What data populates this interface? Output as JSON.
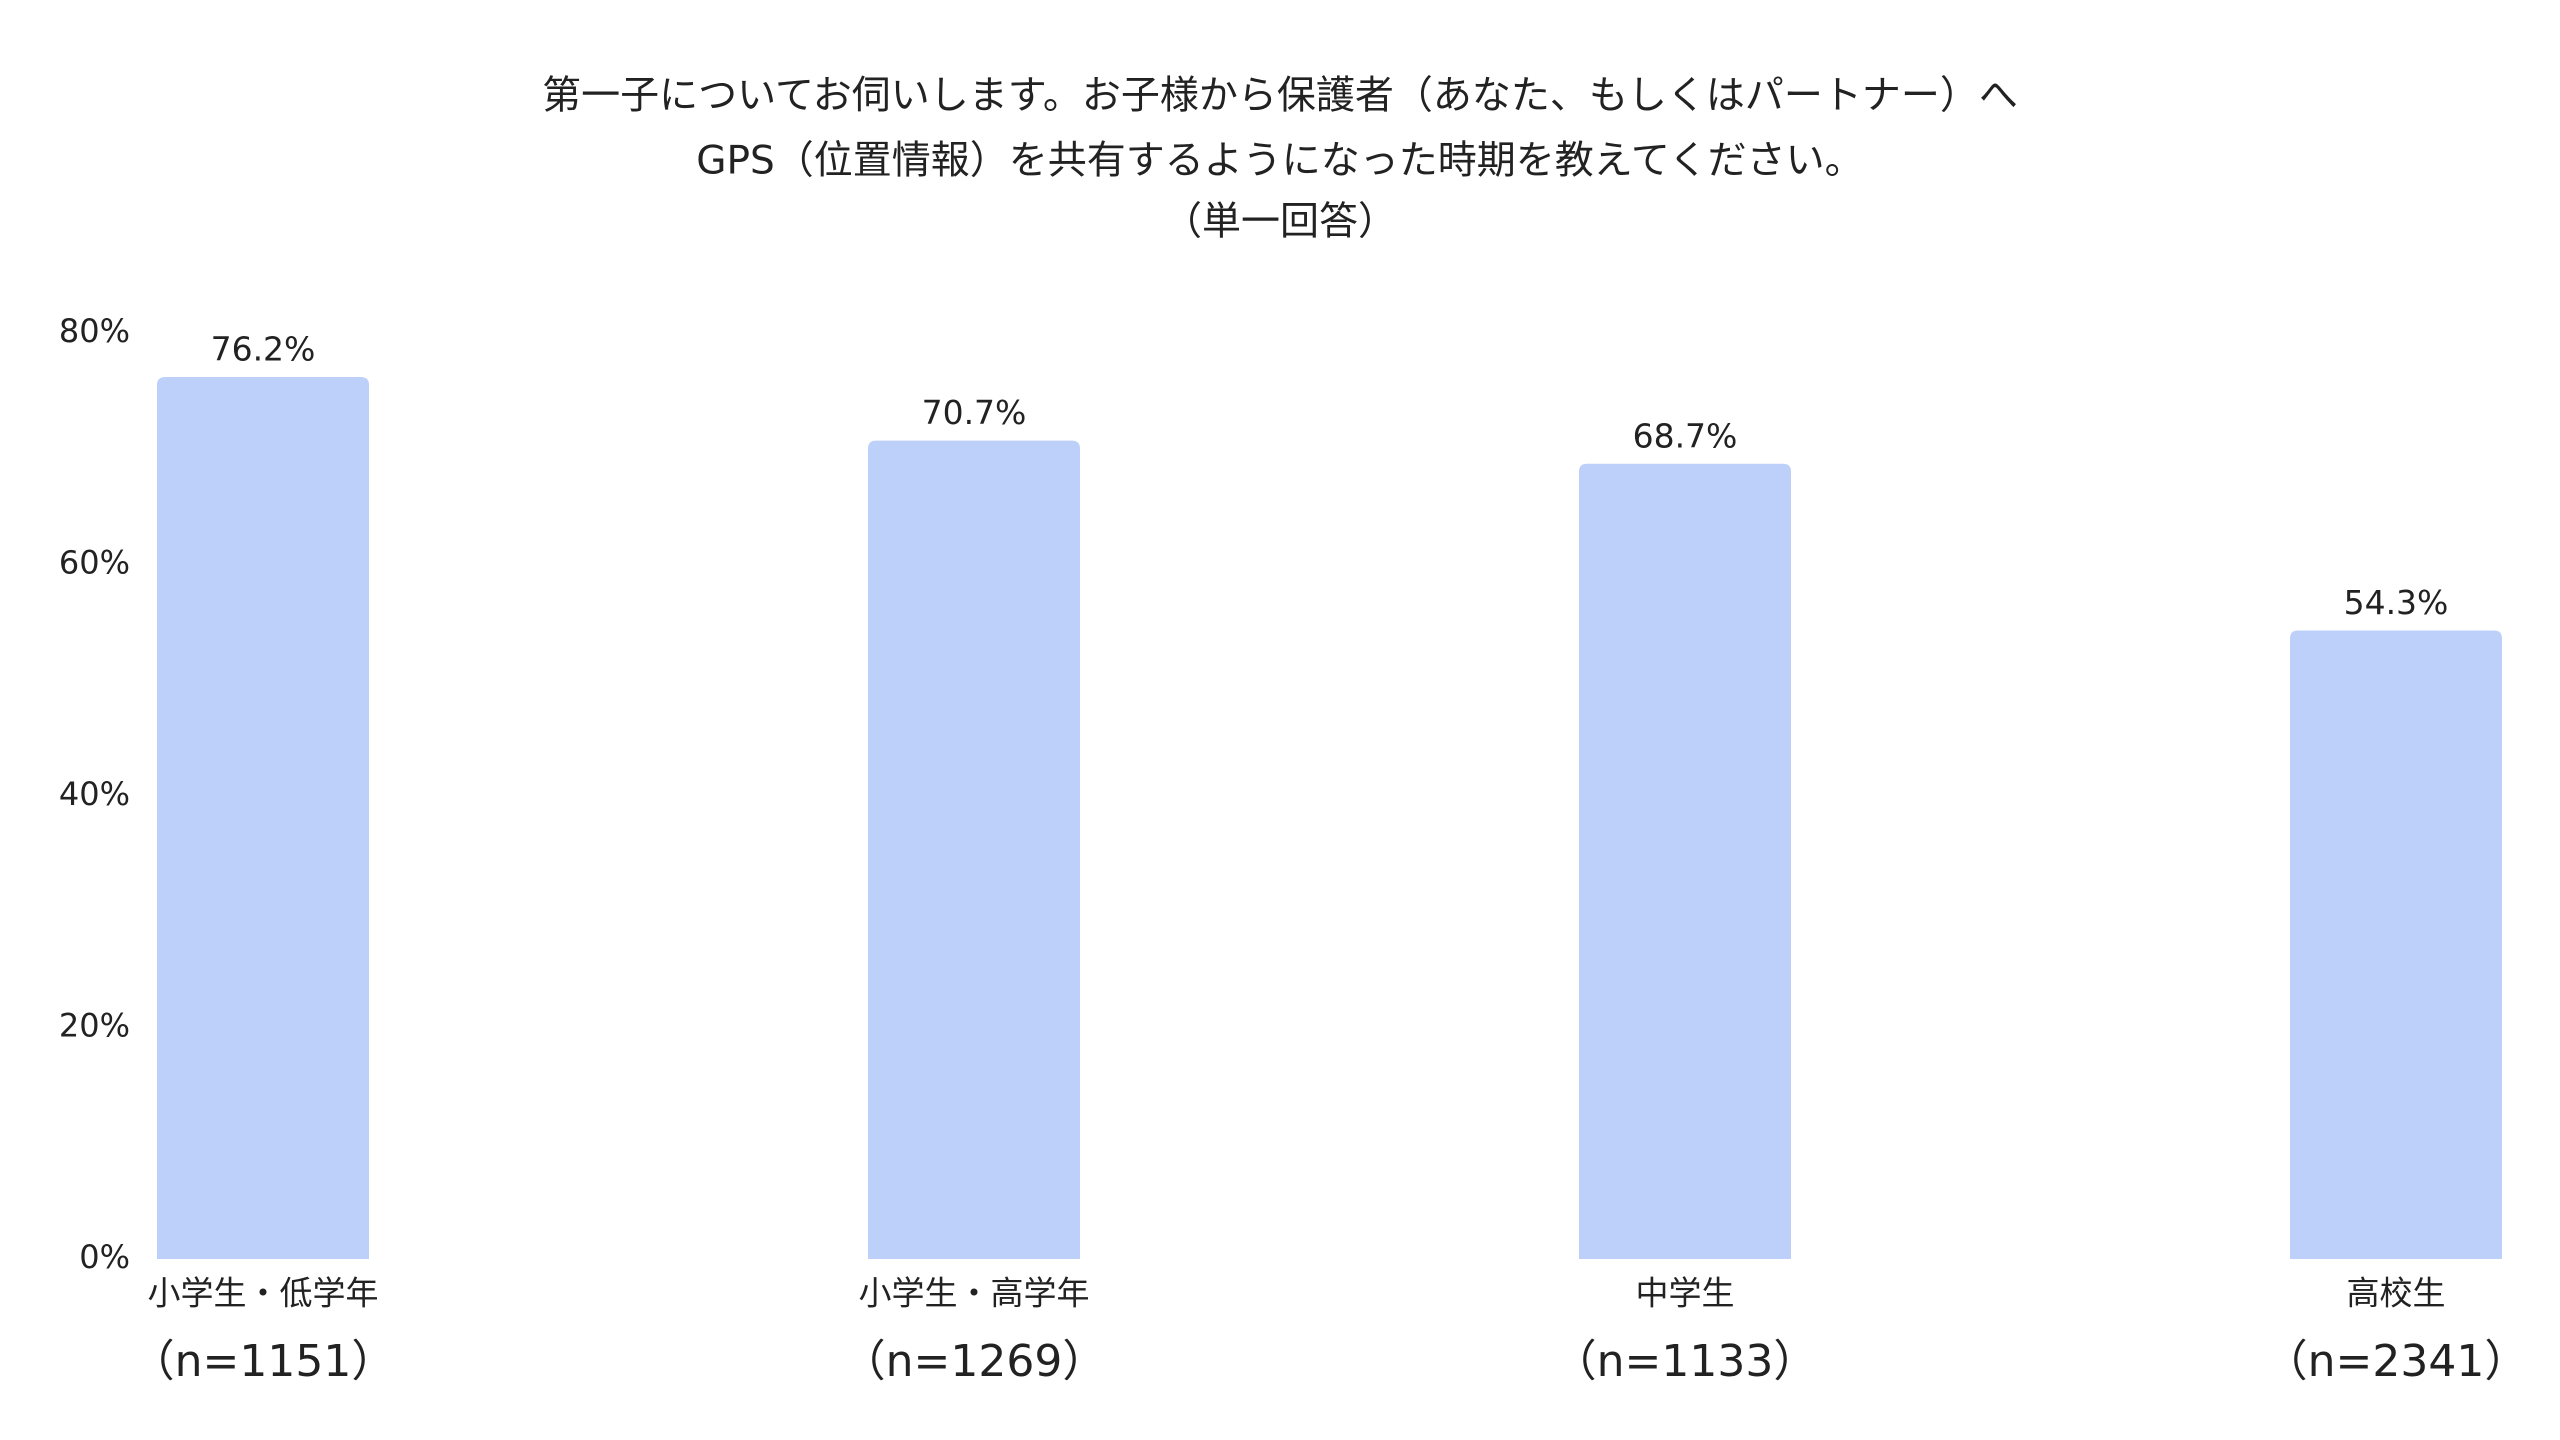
{
  "chart_data": {
    "type": "bar",
    "title": [
      "第一子についてお伺いします。お子様から保護者（あなた、もしくはパートナー）へ",
      "GPS（位置情報）を共有するようになった時期を教えてください。",
      "（単一回答）"
    ],
    "categories": [
      "小学生・低学年",
      "小学生・高学年",
      "中学生",
      "高校生"
    ],
    "sample_sizes": [
      "（n=1151）",
      "（n=1269）",
      "（n=1133）",
      "（n=2341）"
    ],
    "values": [
      76.2,
      70.7,
      68.7,
      54.3
    ],
    "value_labels": [
      "76.2%",
      "70.7%",
      "68.7%",
      "54.3%"
    ],
    "color": "#bdd0fa",
    "ylim": [
      0,
      80
    ],
    "yticks": [
      {
        "value": 0,
        "label": "0%"
      },
      {
        "value": 20,
        "label": "20%"
      },
      {
        "value": 40,
        "label": "40%"
      },
      {
        "value": 60,
        "label": "60%"
      },
      {
        "value": 80,
        "label": "80%"
      }
    ],
    "grid": false
  }
}
